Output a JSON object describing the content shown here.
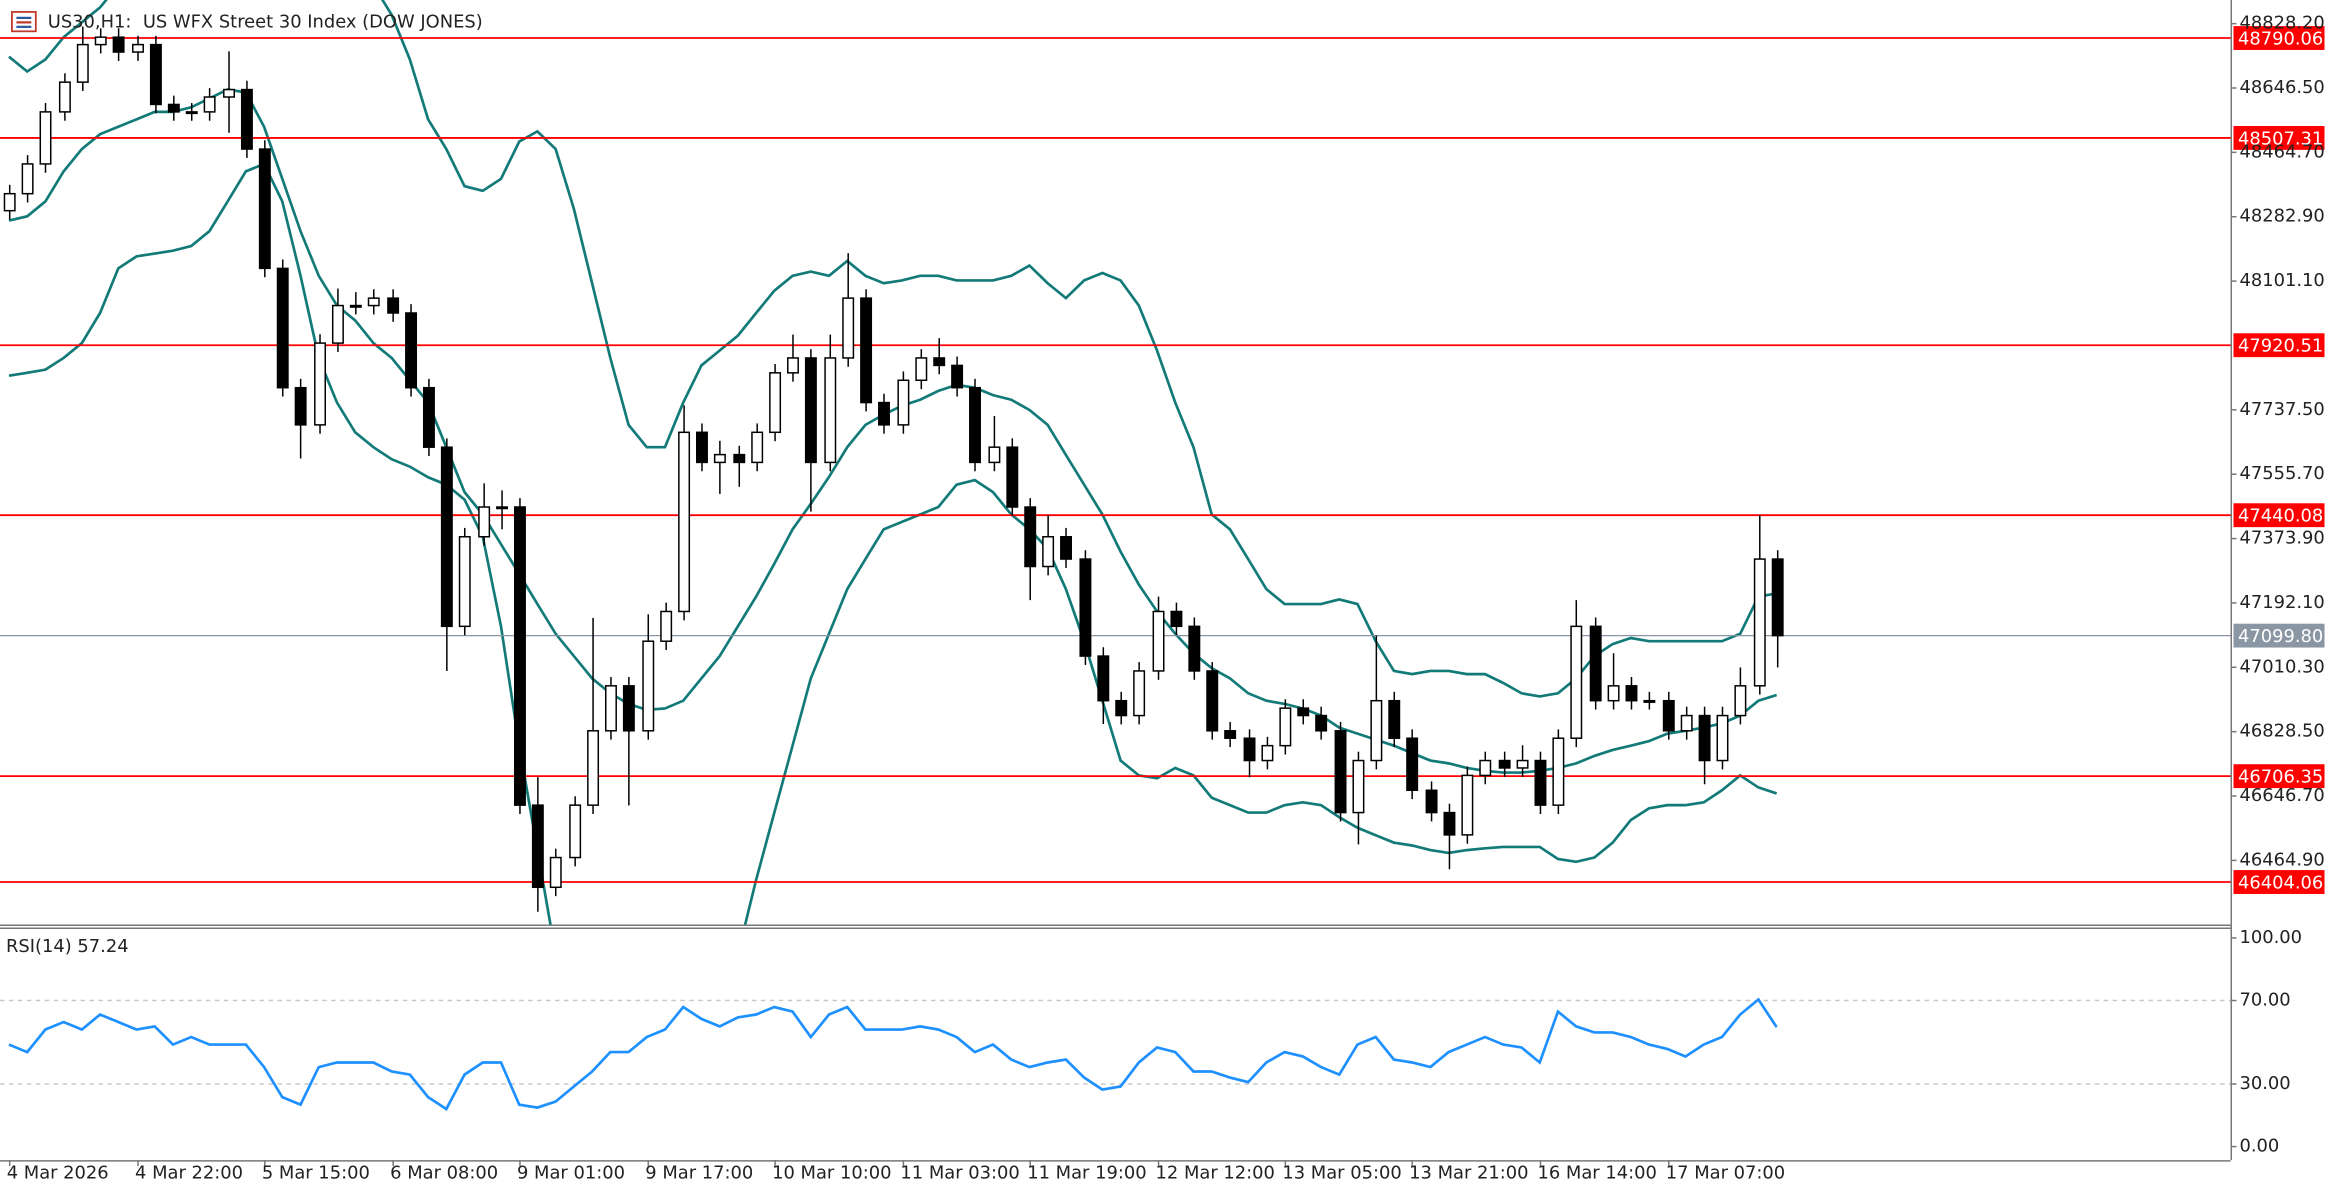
{
  "chart_data": [
    {
      "type": "candlestick",
      "title": "US30,H1:  US WFX Street 30 Index (DOW JONES)",
      "categories": [
        "4 Mar 2026",
        null,
        null,
        null,
        null,
        null,
        null,
        "4 Mar 22:00",
        null,
        null,
        null,
        null,
        null,
        null,
        "5 Mar 15:00",
        null,
        null,
        null,
        null,
        null,
        null,
        "6 Mar 08:00",
        null,
        null,
        null,
        null,
        null,
        null,
        "9 Mar 01:00",
        null,
        null,
        null,
        null,
        null,
        null,
        "9 Mar 17:00",
        null,
        null,
        null,
        null,
        null,
        null,
        "10 Mar 10:00",
        null,
        null,
        null,
        null,
        null,
        null,
        "11 Mar 03:00",
        null,
        null,
        null,
        null,
        null,
        null,
        "11 Mar 19:00",
        null,
        null,
        null,
        null,
        null,
        null,
        "12 Mar 12:00",
        null,
        null,
        null,
        null,
        null,
        null,
        "13 Mar 05:00",
        null,
        null,
        null,
        null,
        null,
        null,
        "13 Mar 21:00",
        null,
        null,
        null,
        null,
        null,
        null,
        "16 Mar 14:00",
        null,
        null,
        null,
        null,
        null,
        null,
        "17 Mar 07:00",
        null,
        null,
        null,
        null,
        null,
        null
      ],
      "open": [
        48300,
        48348,
        48432,
        48579,
        48663,
        48769,
        48790,
        48748,
        48769,
        48600,
        48579,
        48579,
        48621,
        48642,
        48474,
        48137,
        47800,
        47695,
        47926,
        48032,
        48032,
        48053,
        48011,
        47800,
        47632,
        47126,
        47379,
        47463,
        47463,
        46621,
        46389,
        46473,
        46621,
        46831,
        46958,
        46831,
        47084,
        47168,
        47674,
        47589,
        47611,
        47589,
        47674,
        47842,
        47884,
        47589,
        47884,
        48053,
        47758,
        47695,
        47821,
        47884,
        47863,
        47800,
        47589,
        47632,
        47463,
        47295,
        47379,
        47316,
        47042,
        46916,
        46874,
        47000,
        47168,
        47126,
        47000,
        46831,
        46810,
        46747,
        46789,
        46895,
        46874,
        46831,
        46600,
        46747,
        46916,
        46810,
        46663,
        46600,
        46537,
        46705,
        46747,
        46726,
        46747,
        46621,
        46810,
        47126,
        46916,
        46958,
        46916,
        46916,
        46831,
        46874,
        46747,
        46874,
        46958,
        47316
      ],
      "high": [
        48373,
        48457,
        48604,
        48688,
        48820,
        48815,
        48815,
        48794,
        48794,
        48625,
        48604,
        48646,
        48750,
        48667,
        48499,
        48162,
        47825,
        47951,
        48080,
        48070,
        48078,
        48078,
        48036,
        47825,
        47657,
        47404,
        47530,
        47510,
        47488,
        46700,
        46498,
        46646,
        47150,
        46983,
        46983,
        47160,
        47193,
        47750,
        47699,
        47650,
        47636,
        47699,
        47867,
        47950,
        47909,
        47950,
        48180,
        48078,
        47783,
        47846,
        47909,
        47940,
        47888,
        47825,
        47720,
        47657,
        47488,
        47440,
        47404,
        47341,
        47067,
        46941,
        47025,
        47210,
        47193,
        47151,
        47025,
        46856,
        46835,
        46814,
        46920,
        46920,
        46899,
        46856,
        46772,
        47100,
        46941,
        46835,
        46688,
        46625,
        46730,
        46772,
        46772,
        46790,
        46772,
        46835,
        47200,
        47151,
        47050,
        46983,
        46941,
        46941,
        46899,
        46899,
        46899,
        47010,
        47440,
        47341
      ],
      "low": [
        48275,
        48323,
        48407,
        48554,
        48638,
        48744,
        48723,
        48723,
        48575,
        48554,
        48554,
        48554,
        48520,
        48449,
        48112,
        47775,
        47600,
        47670,
        47901,
        48007,
        48007,
        47986,
        47775,
        47607,
        47000,
        47101,
        47354,
        47400,
        46596,
        46320,
        46364,
        46448,
        46596,
        46806,
        46620,
        46806,
        47059,
        47143,
        47564,
        47500,
        47520,
        47564,
        47649,
        47817,
        47450,
        47564,
        47859,
        47733,
        47670,
        47670,
        47796,
        47838,
        47775,
        47564,
        47564,
        47438,
        47200,
        47270,
        47291,
        47017,
        46850,
        46849,
        46849,
        46975,
        47101,
        46975,
        46806,
        46785,
        46700,
        46722,
        46764,
        46849,
        46806,
        46575,
        46510,
        46722,
        46785,
        46638,
        46575,
        46440,
        46512,
        46680,
        46701,
        46701,
        46596,
        46596,
        46785,
        46891,
        46891,
        46891,
        46891,
        46806,
        46806,
        46680,
        46722,
        46849,
        46933,
        47010
      ],
      "close": [
        48348,
        48432,
        48579,
        48663,
        48769,
        48790,
        48748,
        48769,
        48600,
        48579,
        48579,
        48621,
        48642,
        48474,
        48137,
        47800,
        47695,
        47926,
        48032,
        48032,
        48053,
        48011,
        47800,
        47632,
        47126,
        47379,
        47463,
        47463,
        46621,
        46389,
        46473,
        46621,
        46831,
        46958,
        46831,
        47084,
        47168,
        47674,
        47589,
        47611,
        47589,
        47674,
        47842,
        47884,
        47589,
        47884,
        48053,
        47758,
        47695,
        47821,
        47884,
        47863,
        47800,
        47589,
        47632,
        47463,
        47295,
        47379,
        47316,
        47042,
        46916,
        46874,
        47000,
        47168,
        47126,
        47000,
        46831,
        46810,
        46747,
        46789,
        46895,
        46874,
        46831,
        46600,
        46747,
        46916,
        46810,
        46663,
        46600,
        46537,
        46705,
        46747,
        46726,
        46747,
        46621,
        46810,
        47126,
        46916,
        46958,
        46916,
        46916,
        46831,
        46874,
        46747,
        46874,
        46958,
        47316,
        47099.8
      ],
      "up_color": "#ffffff",
      "down_color": "#000000",
      "bands": {
        "color": "#127a78",
        "upper": [
          48735,
          48693,
          48727,
          48790,
          48832,
          48874,
          48937,
          48990,
          49042,
          49063,
          49063,
          49063,
          49042,
          49021,
          49021,
          49021,
          49021,
          49021,
          48990,
          48979,
          48937,
          48853,
          48727,
          48558,
          48474,
          48369,
          48356,
          48390,
          48495,
          48524,
          48474,
          48305,
          48095,
          47884,
          47695,
          47632,
          47632,
          47758,
          47863,
          47905,
          47947,
          48011,
          48074,
          48116,
          48128,
          48116,
          48158,
          48116,
          48095,
          48103,
          48116,
          48116,
          48103,
          48103,
          48103,
          48116,
          48145,
          48095,
          48053,
          48103,
          48124,
          48103,
          48032,
          47905,
          47758,
          47632,
          47442,
          47400,
          47316,
          47231,
          47189,
          47189,
          47189,
          47202,
          47189,
          47084,
          47000,
          46991,
          47000,
          47000,
          46991,
          46991,
          46966,
          46937,
          46928,
          46937,
          46979,
          47042,
          47076,
          47093,
          47084,
          47084,
          47084,
          47084,
          47084,
          47105,
          47210,
          47219
        ],
        "middle": [
          48272,
          48284,
          48326,
          48411,
          48474,
          48516,
          48537,
          48558,
          48579,
          48579,
          48592,
          48617,
          48642,
          48634,
          48537,
          48390,
          48242,
          48116,
          48032,
          47990,
          47926,
          47884,
          47821,
          47758,
          47632,
          47505,
          47442,
          47358,
          47274,
          47189,
          47105,
          47042,
          46979,
          46937,
          46907,
          46890,
          46894,
          46916,
          46979,
          47042,
          47126,
          47210,
          47303,
          47400,
          47472,
          47548,
          47632,
          47695,
          47724,
          47749,
          47766,
          47791,
          47808,
          47800,
          47779,
          47766,
          47737,
          47695,
          47610,
          47526,
          47442,
          47337,
          47244,
          47168,
          47105,
          47050,
          47008,
          46979,
          46937,
          46916,
          46907,
          46894,
          46874,
          46840,
          46823,
          46806,
          46789,
          46768,
          46747,
          46739,
          46726,
          46718,
          46713,
          46713,
          46718,
          46726,
          46739,
          46760,
          46777,
          46789,
          46802,
          46823,
          46831,
          46840,
          46852,
          46874,
          46916,
          46932
        ],
        "lower": [
          47834,
          47842,
          47851,
          47884,
          47926,
          48011,
          48137,
          48171,
          48179,
          48187,
          48200,
          48242,
          48326,
          48411,
          48432,
          48326,
          48116,
          47884,
          47758,
          47674,
          47632,
          47598,
          47577,
          47547,
          47526,
          47484,
          47379,
          47126,
          46789,
          46494,
          46200,
          45947,
          45779,
          45694,
          45652,
          45631,
          45652,
          45694,
          45820,
          45989,
          46200,
          46410,
          46600,
          46789,
          46979,
          47105,
          47231,
          47316,
          47400,
          47421,
          47442,
          47463,
          47526,
          47539,
          47505,
          47442,
          47400,
          47345,
          47231,
          47084,
          46916,
          46747,
          46705,
          46697,
          46726,
          46705,
          46642,
          46621,
          46600,
          46600,
          46621,
          46629,
          46621,
          46587,
          46557,
          46536,
          46515,
          46507,
          46494,
          46486,
          46494,
          46499,
          46503,
          46503,
          46503,
          46469,
          46461,
          46473,
          46515,
          46579,
          46612,
          46621,
          46621,
          46629,
          46663,
          46705,
          46671,
          46654
        ]
      },
      "levels": [
        48790.06,
        48507.31,
        47920.51,
        47440.08,
        46706.35,
        46404.06
      ],
      "level_color": "#ff0000",
      "current_price": {
        "value": 47099.8,
        "label": "47099.80"
      },
      "current_color": "#8a96a3",
      "ylim": [
        46283.8,
        48895
      ],
      "yticks": [
        {
          "value": 46464.9,
          "label": "46464.90"
        },
        {
          "value": 46646.7,
          "label": "46646.70"
        },
        {
          "value": 46828.5,
          "label": "46828.50"
        },
        {
          "value": 47010.3,
          "label": "47010.30"
        },
        {
          "value": 47192.1,
          "label": "47192.10"
        },
        {
          "value": 47373.9,
          "label": "47373.90"
        },
        {
          "value": 47555.7,
          "label": "47555.70"
        },
        {
          "value": 47737.5,
          "label": "47737.50"
        },
        {
          "value": 48101.1,
          "label": "48101.10"
        },
        {
          "value": 48282.9,
          "label": "48282.90"
        },
        {
          "value": 48464.7,
          "label": "48464.70"
        },
        {
          "value": 48646.5,
          "label": "48646.50"
        },
        {
          "value": 48828.2,
          "label": "48828.20"
        }
      ]
    },
    {
      "type": "line",
      "title": "RSI(14) 57.24",
      "values": [
        48.9,
        45.3,
        56.1,
        59.7,
        56.1,
        63.3,
        59.7,
        56.1,
        57.6,
        48.9,
        52.5,
        48.9,
        48.9,
        48.9,
        38.1,
        23.7,
        20.1,
        38.1,
        40.3,
        40.3,
        40.3,
        36,
        34.5,
        23.7,
        18,
        34.5,
        40.3,
        40.3,
        20.1,
        18.7,
        21.6,
        28.8,
        36,
        45.3,
        45.3,
        52.5,
        56.1,
        66.9,
        61.2,
        57.6,
        61.9,
        63.3,
        66.9,
        64.7,
        52.5,
        63.3,
        66.9,
        56.1,
        56.1,
        56.1,
        57.6,
        56.1,
        52.5,
        45.3,
        48.9,
        41.7,
        38.1,
        40.3,
        41.7,
        33.1,
        27.3,
        28.8,
        40.3,
        47.5,
        45.3,
        36,
        36,
        33.1,
        30.9,
        40.3,
        45.3,
        43.2,
        38.1,
        34.5,
        48.9,
        52.5,
        41.7,
        40.3,
        38.1,
        45.3,
        48.9,
        52.5,
        48.9,
        47.5,
        40.3,
        64.7,
        57.6,
        54.7,
        54.7,
        52.5,
        48.9,
        46.8,
        43.2,
        48.9,
        52.5,
        63.3,
        70.5,
        57.24
      ],
      "color": "#1e90ff",
      "levels": [
        70,
        30
      ],
      "ylim": [
        -6.5,
        105
      ],
      "yticks": [
        {
          "value": 0,
          "label": "0.00"
        },
        {
          "value": 30,
          "label": "30.00"
        },
        {
          "value": 70,
          "label": "70.00"
        },
        {
          "value": 100,
          "label": "100.00"
        }
      ]
    }
  ]
}
